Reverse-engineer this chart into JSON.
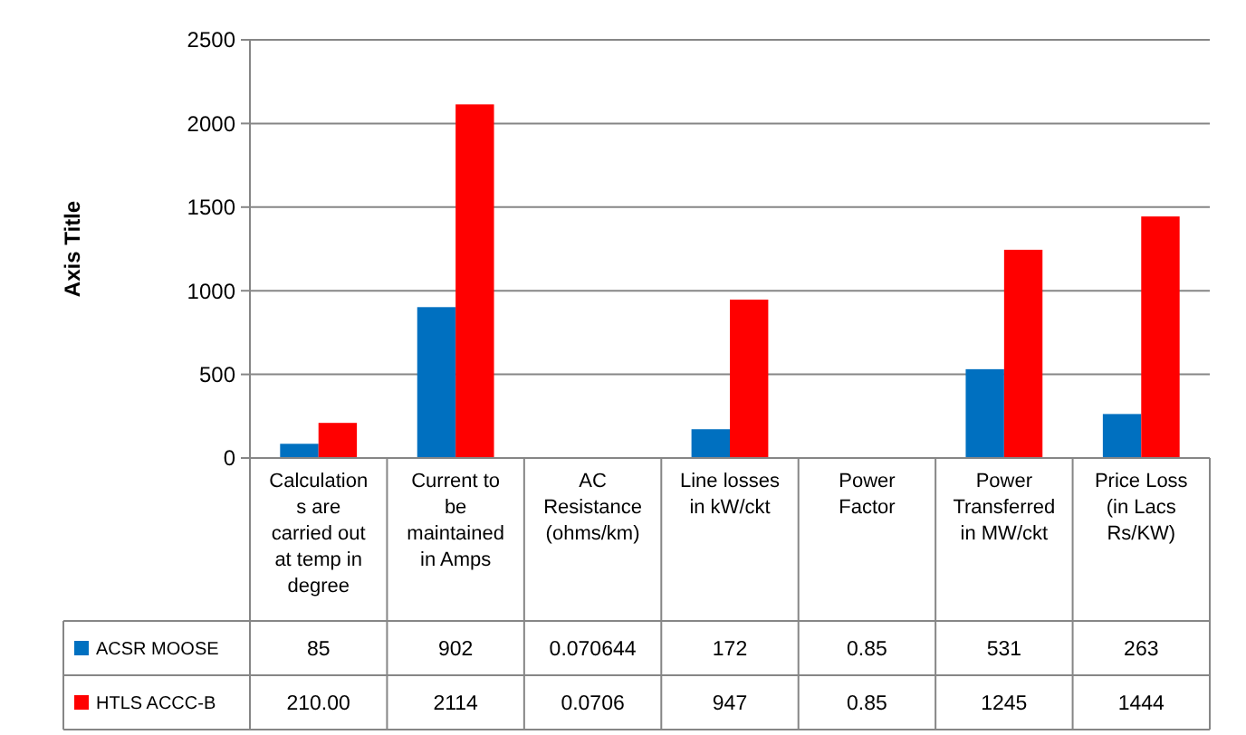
{
  "chart_data": {
    "type": "bar",
    "ylabel": "Axis Title",
    "categories": [
      "Calculations are carried out at temp in degree",
      "Current to be maintained in Amps",
      "AC Resistance (ohms/km)",
      "Line losses in kW/ckt",
      "Power Factor",
      "Power Transferred in MW/ckt",
      "Price Loss (in Lacs Rs/KW)"
    ],
    "series": [
      {
        "name": "ACSR MOOSE",
        "color": "#0070c0",
        "values": [
          85,
          902,
          0.070644,
          172,
          0.85,
          531,
          263
        ],
        "value_labels": [
          "85",
          "902",
          "0.070644",
          "172",
          "0.85",
          "531",
          "263"
        ]
      },
      {
        "name": "HTLS ACCC-B",
        "color": "#ff0000",
        "values": [
          210,
          2114,
          0.0706,
          947,
          0.85,
          1245,
          1444
        ],
        "value_labels": [
          "210.00",
          "2114",
          "0.0706",
          "947",
          "0.85",
          "1245",
          "1444"
        ]
      }
    ],
    "ylim": [
      0,
      2500
    ],
    "yticks": [
      0,
      500,
      1000,
      1500,
      2000,
      2500
    ],
    "grid": "y",
    "legend": "bottom"
  }
}
